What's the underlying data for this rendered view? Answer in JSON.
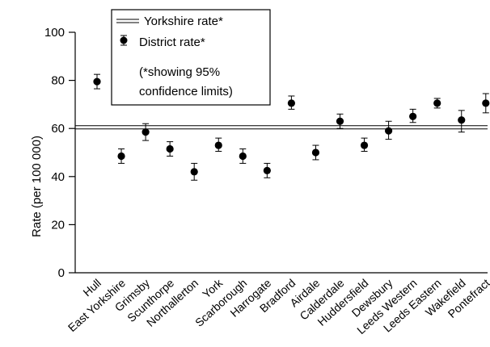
{
  "chart_data": {
    "type": "scatter",
    "title": "",
    "xlabel": "",
    "ylabel": "Rate (per 100 000)",
    "ylim": [
      0,
      100
    ],
    "yticks": [
      0,
      20,
      40,
      60,
      80,
      100
    ],
    "grid": false,
    "legend_position": "top-left",
    "categories": [
      "Hull",
      "East Yorkshire",
      "Grimsby",
      "Scunthorpe",
      "Northallerton",
      "York",
      "Scarborough",
      "Harrogate",
      "Bradford",
      "Airdale",
      "Calderdale",
      "Huddersfield",
      "Dewsbury",
      "Leeds Western",
      "Leeds Eastern",
      "Wakefield",
      "Pontefract"
    ],
    "series": [
      {
        "name": "District rate*",
        "values": [
          79.5,
          48.5,
          58.5,
          51.5,
          42,
          53,
          48.5,
          42.5,
          70.5,
          50,
          63,
          53,
          59,
          65,
          70.5,
          63.5,
          70.5
        ],
        "lower": [
          76.5,
          45.5,
          55,
          48.5,
          38.5,
          50.5,
          45.5,
          39.5,
          68,
          47,
          60,
          50.5,
          55.5,
          62.5,
          68.5,
          58.5,
          66.5
        ],
        "upper": [
          82.5,
          51.5,
          62,
          54.5,
          45.5,
          56,
          51.5,
          45.5,
          73.5,
          53,
          66,
          56,
          63,
          68,
          72.5,
          67.5,
          74.5
        ]
      }
    ],
    "reference_line": {
      "name": "Yorkshire rate*",
      "value": 60.5
    },
    "legend": {
      "line_label": "Yorkshire rate*",
      "point_label": "District rate*",
      "note_line1": "(*showing 95%",
      "note_line2": "confidence limits)"
    }
  }
}
